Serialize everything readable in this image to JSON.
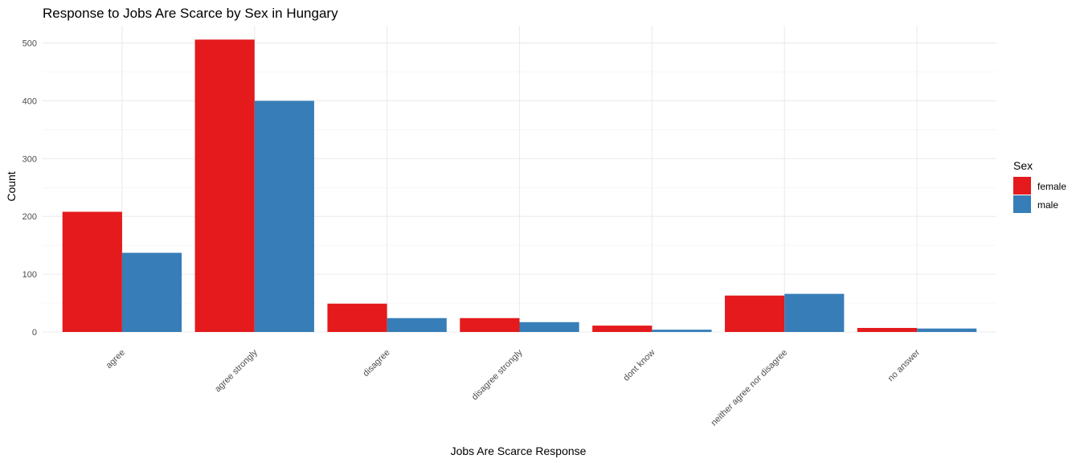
{
  "chart_data": {
    "type": "bar",
    "title": "Response to Jobs Are Scarce by Sex in Hungary",
    "xlabel": "Jobs Are Scarce Response",
    "ylabel": "Count",
    "categories": [
      "agree",
      "agree strongly",
      "disagree",
      "disagree strongly",
      "dont know",
      "neither agree nor disagree",
      "no answer"
    ],
    "series": [
      {
        "name": "female",
        "color": "#E41A1C",
        "values": [
          208,
          506,
          49,
          24,
          11,
          63,
          7
        ]
      },
      {
        "name": "male",
        "color": "#377EB8",
        "values": [
          137,
          400,
          24,
          17,
          4,
          66,
          6
        ]
      }
    ],
    "ylim": [
      0,
      530
    ],
    "yticks": [
      0,
      100,
      200,
      300,
      400,
      500
    ],
    "grid": true,
    "legend": {
      "title": "Sex",
      "placement": "right"
    }
  }
}
